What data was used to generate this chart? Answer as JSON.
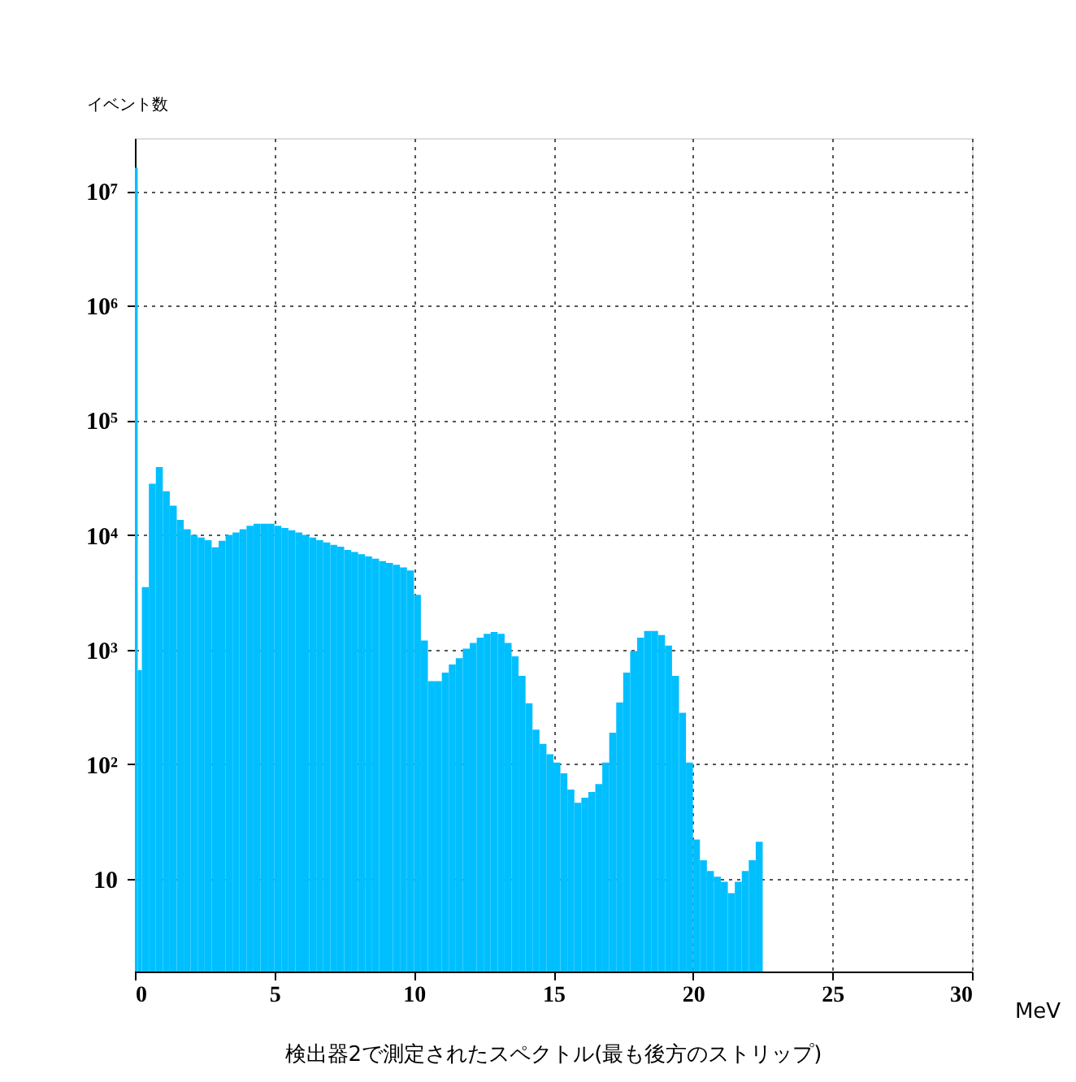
{
  "chart_data": {
    "type": "histogram",
    "title": "検出器2で測定されたスペクトル(最も後方のストリップ)",
    "xlabel": "MeV",
    "ylabel": "イベント数",
    "bins": [
      0,
      0.1,
      0.25,
      0.5,
      0.75,
      1.0,
      1.25,
      1.5,
      1.75,
      2.0,
      2.25,
      2.5,
      2.75,
      3.0,
      3.25,
      3.5,
      3.75,
      4.0,
      4.25,
      4.5,
      4.75,
      5.0,
      5.25,
      5.5,
      5.75,
      6.0,
      6.25,
      6.5,
      6.75,
      7.0,
      7.25,
      7.5,
      7.75,
      8.0,
      8.25,
      8.5,
      8.75,
      9.0,
      9.25,
      9.5,
      9.75,
      10.0,
      10.25,
      10.5,
      10.75,
      11.0,
      11.25,
      11.5,
      11.75,
      12.0,
      12.25,
      12.5,
      12.75,
      13.0,
      13.25,
      13.5,
      13.75,
      14.0,
      14.25,
      14.5,
      14.75,
      15.0,
      15.25,
      15.5,
      15.75,
      16.0,
      16.25,
      16.5,
      16.75,
      17.0,
      17.25,
      17.5,
      17.75,
      18.0,
      18.25,
      18.5,
      18.75,
      19.0,
      19.25,
      19.5,
      19.75,
      20.0,
      20.25,
      20.5,
      20.75,
      21.0,
      21.25,
      21.5,
      21.75,
      22.0,
      22.25,
      22.5
    ],
    "values": [
      16000000,
      660,
      3500,
      28000,
      39000,
      24000,
      18000,
      13500,
      11200,
      10000,
      9500,
      9000,
      7800,
      8900,
      10000,
      10500,
      11200,
      12000,
      12500,
      12500,
      12500,
      12000,
      11500,
      11000,
      10500,
      10000,
      9500,
      9000,
      8600,
      8200,
      7900,
      7400,
      7100,
      6800,
      6500,
      6200,
      5900,
      5700,
      5500,
      5200,
      4900,
      3000,
      1200,
      530,
      530,
      630,
      740,
      840,
      1020,
      1140,
      1270,
      1370,
      1420,
      1370,
      1140,
      870,
      590,
      340,
      200,
      150,
      122,
      103,
      83,
      60,
      46,
      51,
      57,
      67,
      103,
      188,
      345,
      630,
      970,
      1270,
      1450,
      1450,
      1340,
      1080,
      590,
      280,
      103,
      22,
      14.5,
      11.7,
      10.4,
      9.4,
      7.5,
      9.4,
      11.7,
      14.5,
      21
    ],
    "color": "#00bfff",
    "log": true,
    "grid": true,
    "xlim": [
      0,
      30
    ],
    "xticks": [
      0,
      5,
      10,
      15,
      20,
      25,
      30
    ],
    "ylim": [
      1.55,
      29000000
    ],
    "yticks": [
      {
        "value": 10,
        "label": "10"
      },
      {
        "value": 100,
        "label": "10²"
      },
      {
        "value": 1000,
        "label": "10³"
      },
      {
        "value": 10000,
        "label": "10⁴"
      },
      {
        "value": 100000,
        "label": "10⁵"
      },
      {
        "value": 1000000,
        "label": "10⁶"
      },
      {
        "value": 10000000,
        "label": "10⁷"
      }
    ]
  }
}
